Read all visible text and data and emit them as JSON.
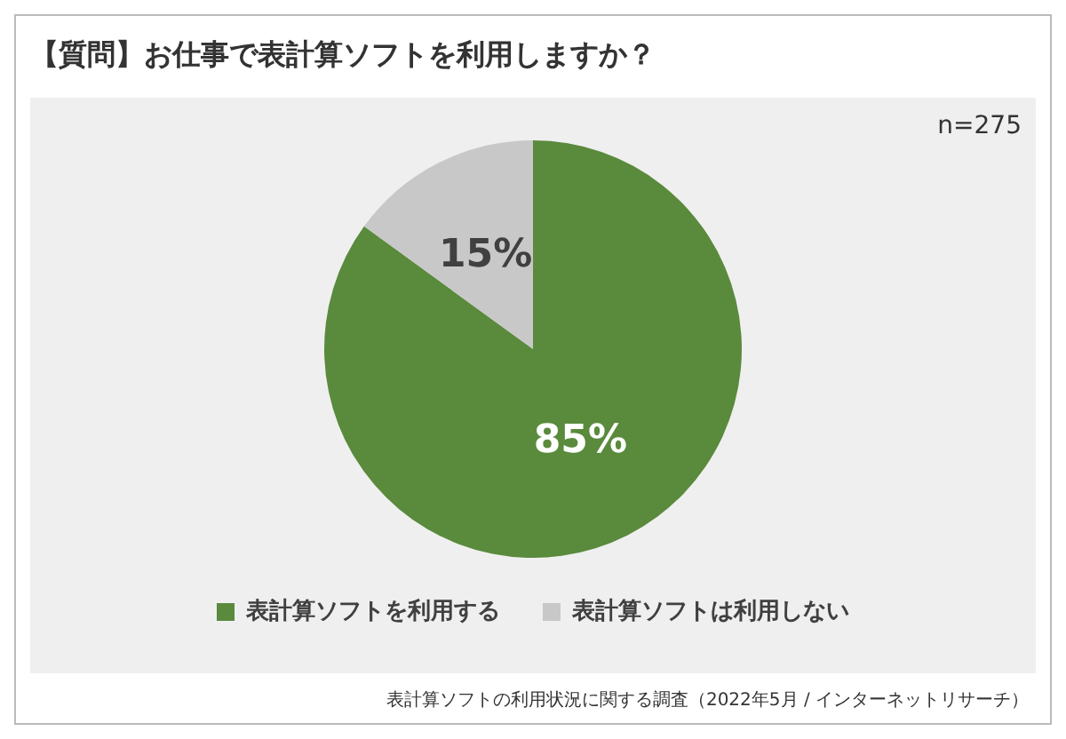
{
  "chart_data": {
    "type": "pie",
    "title": "【質問】お仕事で表計算ソフトを利用しますか？",
    "categories": [
      "表計算ソフトを利用する",
      "表計算ソフトは利用しない"
    ],
    "values": [
      85,
      15
    ],
    "colors": [
      "#5a8a3c",
      "#c8c8c8"
    ],
    "value_labels": [
      "85%",
      "15%"
    ],
    "legend": "bottom",
    "annotations": [
      "n=275",
      "表計算ソフトの利用状況に関する調査（2022年5月 / インターネットリサーチ）"
    ]
  }
}
